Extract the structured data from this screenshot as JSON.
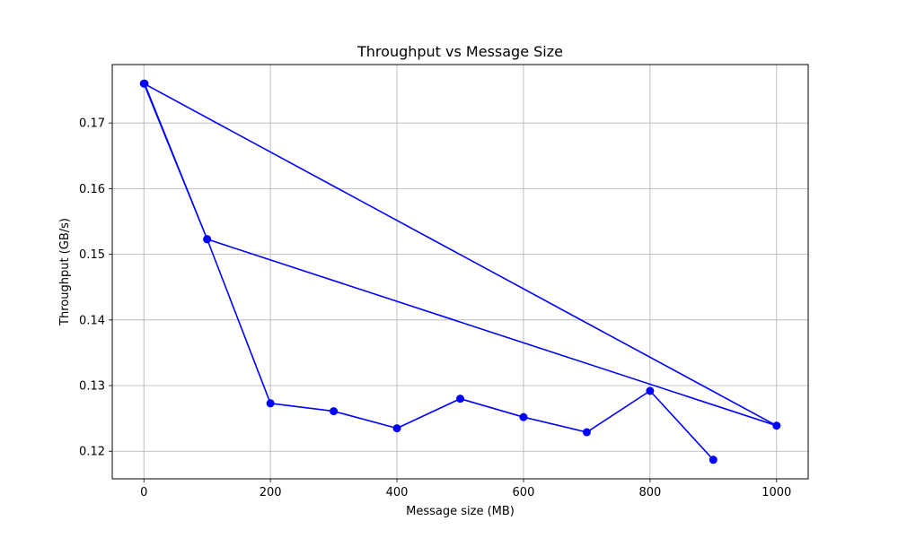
{
  "chart_data": {
    "type": "line",
    "title": "Throughput vs Message Size",
    "xlabel": "Message size (MB)",
    "ylabel": "Throughput (GB/s)",
    "xlim": [
      -50,
      1050
    ],
    "ylim": [
      0.1158,
      0.1789
    ],
    "xticks": [
      0,
      200,
      400,
      600,
      800,
      1000
    ],
    "yticks": [
      0.12,
      0.13,
      0.14,
      0.15,
      0.16,
      0.17
    ],
    "xtick_labels": [
      "0",
      "200",
      "400",
      "600",
      "800",
      "1000"
    ],
    "ytick_labels": [
      "0.12",
      "0.13",
      "0.14",
      "0.15",
      "0.16",
      "0.17"
    ],
    "grid": true,
    "series": [
      {
        "color": "#0000ff",
        "marker": "circle",
        "points": [
          {
            "x": 1,
            "y": 0.176
          },
          {
            "x": 100,
            "y": 0.1523
          },
          {
            "x": 1000,
            "y": 0.1239
          },
          {
            "x": 0,
            "y": 0.176
          },
          {
            "x": 100,
            "y": 0.1523
          },
          {
            "x": 200,
            "y": 0.1273
          },
          {
            "x": 300,
            "y": 0.1261
          },
          {
            "x": 400,
            "y": 0.1235
          },
          {
            "x": 500,
            "y": 0.128
          },
          {
            "x": 600,
            "y": 0.1252
          },
          {
            "x": 700,
            "y": 0.1229
          },
          {
            "x": 800,
            "y": 0.1292
          },
          {
            "x": 900,
            "y": 0.1187
          }
        ]
      }
    ]
  }
}
